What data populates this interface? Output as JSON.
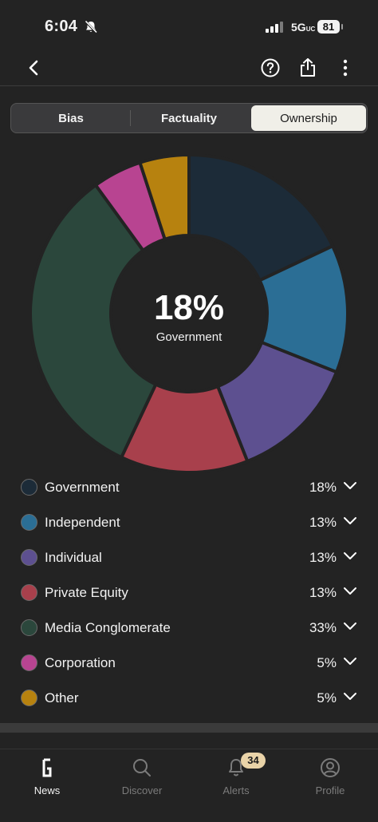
{
  "status_bar": {
    "time": "6:04",
    "network": "5G",
    "network_suffix": "UC",
    "battery": "81"
  },
  "segmented": {
    "bias": "Bias",
    "factuality": "Factuality",
    "ownership": "Ownership",
    "selected": "Ownership"
  },
  "chart_data": {
    "type": "pie",
    "center": {
      "value": "18%",
      "label": "Government"
    },
    "categories": [
      "Government",
      "Independent",
      "Individual",
      "Private Equity",
      "Media Conglomerate",
      "Corporation",
      "Other"
    ],
    "values": [
      18,
      13,
      13,
      13,
      33,
      5,
      5
    ],
    "colors": [
      "#1c2b38",
      "#2b6e95",
      "#5d5090",
      "#a8404c",
      "#2b473c",
      "#b84491",
      "#b7820f"
    ]
  },
  "legend": [
    {
      "label": "Government",
      "pct": "18%",
      "color": "#1c2b38"
    },
    {
      "label": "Independent",
      "pct": "13%",
      "color": "#2b6e95"
    },
    {
      "label": "Individual",
      "pct": "13%",
      "color": "#5d5090"
    },
    {
      "label": "Private Equity",
      "pct": "13%",
      "color": "#a8404c"
    },
    {
      "label": "Media Conglomerate",
      "pct": "33%",
      "color": "#2b473c"
    },
    {
      "label": "Corporation",
      "pct": "5%",
      "color": "#b84491"
    },
    {
      "label": "Other",
      "pct": "5%",
      "color": "#b7820f"
    }
  ],
  "tabbar": {
    "news": "News",
    "discover": "Discover",
    "alerts": "Alerts",
    "profile": "Profile",
    "alerts_badge": "34",
    "active": "News"
  },
  "icons": {
    "back": "chevron-left-icon",
    "help": "question-circle-icon",
    "share": "share-icon",
    "more": "more-vertical-icon"
  }
}
